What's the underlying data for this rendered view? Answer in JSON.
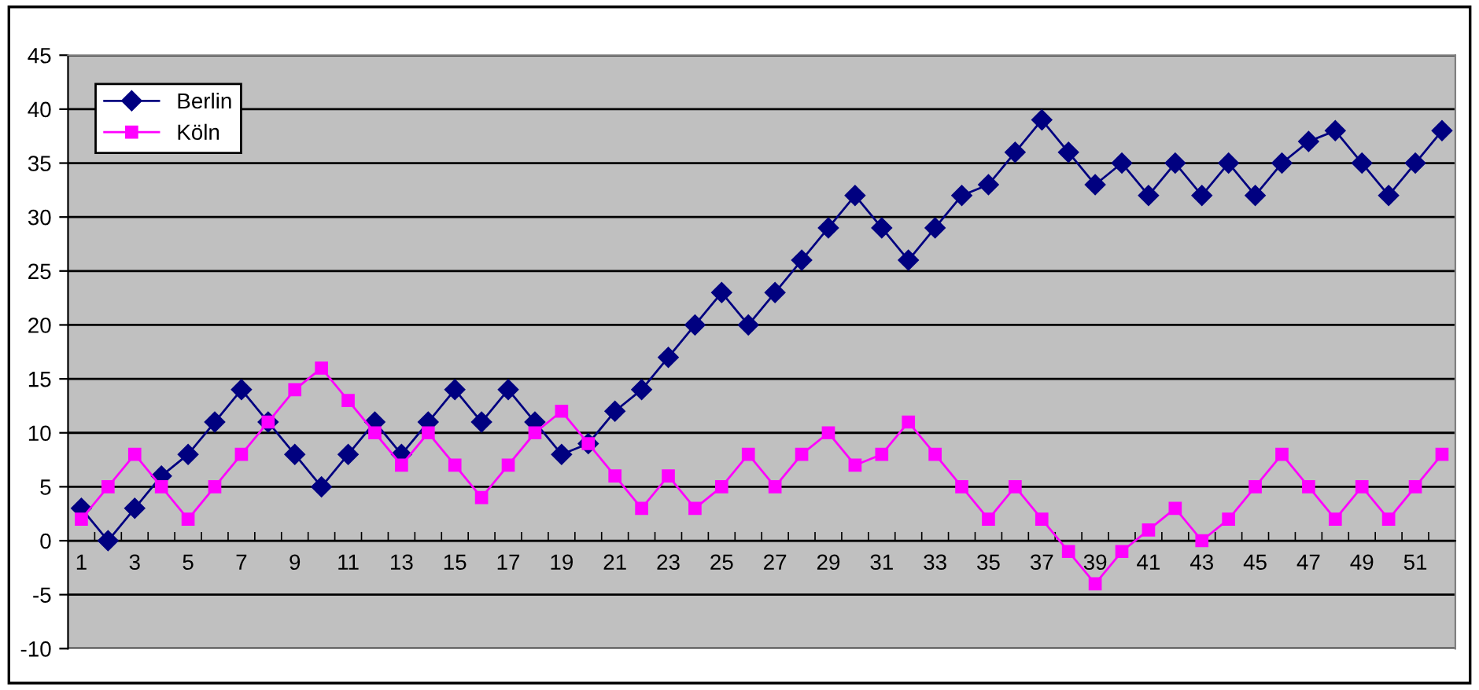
{
  "chart_data": {
    "type": "line",
    "categories": [
      "1",
      null,
      "3",
      null,
      "5",
      null,
      "7",
      null,
      "9",
      null,
      "11",
      null,
      "13",
      null,
      "15",
      null,
      "17",
      null,
      "19",
      null,
      "21",
      null,
      "23",
      null,
      "25",
      null,
      "27",
      null,
      "29",
      null,
      "31",
      null,
      "33",
      null,
      "35",
      null,
      "37",
      null,
      "39",
      null,
      "41",
      null,
      "43",
      null,
      "45",
      null,
      "47",
      null,
      "49",
      null,
      "51",
      null
    ],
    "series": [
      {
        "name": "Berlin",
        "color": "#000080",
        "marker": "diamond",
        "values": [
          3,
          0,
          3,
          6,
          8,
          11,
          14,
          11,
          8,
          5,
          8,
          11,
          8,
          11,
          14,
          11,
          14,
          11,
          8,
          9,
          12,
          14,
          17,
          20,
          23,
          20,
          23,
          26,
          29,
          32,
          29,
          26,
          29,
          32,
          33,
          36,
          39,
          36,
          33,
          35,
          32,
          35,
          32,
          35,
          32,
          35,
          37,
          38,
          35,
          32,
          35,
          38
        ]
      },
      {
        "name": "Köln",
        "color": "#ff00ff",
        "marker": "square",
        "values": [
          2,
          5,
          8,
          5,
          2,
          5,
          8,
          11,
          14,
          16,
          13,
          10,
          7,
          10,
          7,
          4,
          7,
          10,
          12,
          9,
          6,
          3,
          6,
          3,
          5,
          8,
          5,
          8,
          10,
          7,
          8,
          11,
          8,
          5,
          2,
          5,
          2,
          -1,
          -4,
          -1,
          1,
          3,
          0,
          2,
          5,
          8,
          5,
          2,
          5,
          2,
          5,
          8
        ]
      }
    ],
    "ylim": [
      -10,
      45
    ],
    "yticks": [
      -10,
      -5,
      0,
      5,
      10,
      15,
      20,
      25,
      30,
      35,
      40,
      45
    ],
    "grid": "y",
    "legend": "top left",
    "line_style": "solid"
  }
}
